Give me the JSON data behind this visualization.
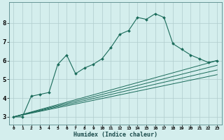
{
  "xlabel": "Humidex (Indice chaleur)",
  "ylabel": "",
  "background_color": "#d4eeed",
  "grid_color": "#b0cccc",
  "line_color": "#1a6b5a",
  "x_ticks": [
    0,
    1,
    2,
    3,
    4,
    5,
    6,
    7,
    8,
    9,
    10,
    11,
    12,
    13,
    14,
    15,
    16,
    17,
    18,
    19,
    20,
    21,
    22,
    23
  ],
  "y_ticks": [
    3,
    4,
    5,
    6,
    7,
    8
  ],
  "ylim": [
    2.6,
    9.1
  ],
  "xlim": [
    -0.5,
    23.5
  ],
  "series": [
    {
      "x": [
        0,
        1,
        2,
        3,
        4,
        5,
        6,
        7,
        8,
        9,
        10,
        11,
        12,
        13,
        14,
        15,
        16,
        17,
        18,
        19,
        20,
        21,
        22,
        23
      ],
      "y": [
        3.0,
        3.0,
        4.1,
        4.2,
        4.3,
        5.8,
        6.3,
        5.3,
        5.6,
        5.8,
        6.1,
        6.7,
        7.4,
        7.6,
        8.3,
        8.2,
        8.5,
        8.3,
        6.9,
        6.6,
        6.3,
        6.1,
        5.9,
        6.0
      ],
      "marker": true
    },
    {
      "x": [
        0,
        23
      ],
      "y": [
        3.0,
        6.0
      ],
      "marker": false
    },
    {
      "x": [
        0,
        23
      ],
      "y": [
        3.0,
        5.75
      ],
      "marker": false
    },
    {
      "x": [
        0,
        23
      ],
      "y": [
        3.0,
        5.5
      ],
      "marker": false
    },
    {
      "x": [
        0,
        23
      ],
      "y": [
        3.0,
        5.25
      ],
      "marker": false
    }
  ]
}
